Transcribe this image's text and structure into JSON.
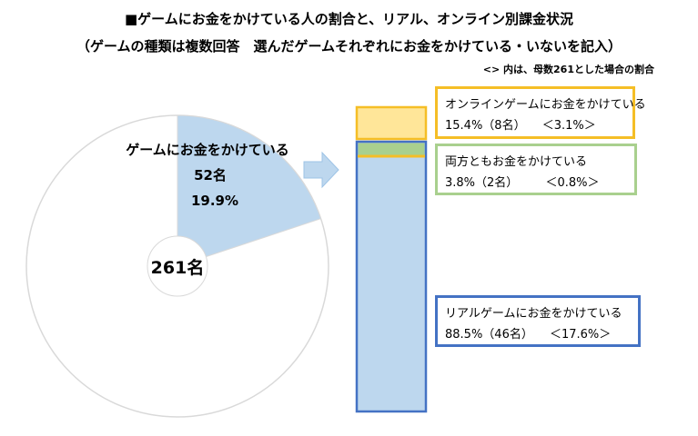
{
  "title": "■ゲームにお金をかけている人の割合と、リアル、オンライン別課金状況",
  "subtitle": "（ゲームの種類は複数回答　選んだゲームそれぞれにお金をかけている・いないを記入）",
  "note": "<> 内は、母数261とした場合の割合",
  "colors": {
    "pie_highlight": "#bdd7ee",
    "pie_rest": "#ffffff",
    "pie_outline": "#d9d9d9",
    "online": "#ffe699",
    "both": "#a9d08e",
    "real": "#bdd7ee",
    "online_border": "#f5be26",
    "both_border": "#a9d08e",
    "real_border": "#4472c4",
    "arrow": "#bdd7ee"
  },
  "chart_data": [
    {
      "type": "pie",
      "total": 261,
      "total_label": "261名",
      "slices": [
        {
          "name": "ゲームにお金をかけている",
          "count": 52,
          "count_label": "52名",
          "percent": 19.9,
          "percent_label": "19.9%"
        },
        {
          "name": "",
          "count": 209,
          "percent": 80.1
        }
      ]
    },
    {
      "type": "bar",
      "stacked": true,
      "total": 52,
      "segments": [
        {
          "key": "online",
          "name": "オンラインゲームにお金をかけている",
          "percent": 15.4,
          "count": 8,
          "value_label": "15.4%（8名）",
          "overall_label": "＜3.1%＞"
        },
        {
          "key": "both",
          "name": "両方ともお金をかけている",
          "percent": 3.8,
          "count": 2,
          "value_label": "3.8%（2名）",
          "overall_label": "＜0.8%＞"
        },
        {
          "key": "real",
          "name": "リアルゲームにお金をかけている",
          "percent": 88.5,
          "count": 46,
          "value_label": "88.5%（46名）",
          "overall_label": "＜17.6%＞"
        }
      ]
    }
  ]
}
